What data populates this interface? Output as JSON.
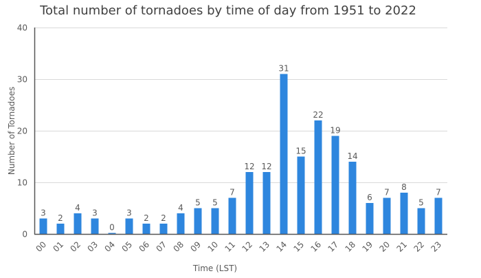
{
  "chart_data": {
    "type": "bar",
    "title": "Total number of tornadoes by time of day from 1951 to 2022",
    "xlabel": "Time (LST)",
    "ylabel": "Number of Tornadoes",
    "categories": [
      "00",
      "01",
      "02",
      "03",
      "04",
      "05",
      "06",
      "07",
      "08",
      "09",
      "10",
      "11",
      "12",
      "13",
      "14",
      "15",
      "16",
      "17",
      "18",
      "19",
      "20",
      "21",
      "22",
      "23"
    ],
    "values": [
      3,
      2,
      4,
      3,
      0,
      3,
      2,
      2,
      4,
      5,
      5,
      7,
      12,
      12,
      31,
      15,
      22,
      19,
      14,
      6,
      7,
      8,
      5,
      7
    ],
    "ylim": [
      0,
      40
    ],
    "yticks": [
      0,
      10,
      20,
      30,
      40
    ],
    "grid": true,
    "legend": "none",
    "bar_color": "#2e86de"
  }
}
